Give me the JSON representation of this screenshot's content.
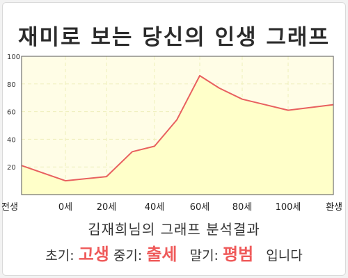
{
  "title": "재미로 보는 당신의 인생 그래프",
  "subtitle": "김재희님의 그래프 분석결과",
  "result": {
    "early_label": "초기:",
    "early_value": "고생",
    "mid_label": "중기:",
    "mid_value": "출세",
    "late_label": "말기:",
    "late_value": "평범",
    "suffix": "입니다"
  },
  "colors": {
    "line": "#e8605f",
    "fill": "#ffffc9",
    "plot_bg": "#fffde6",
    "grid": "#eeeebb",
    "highlight": "#ef5a5a"
  },
  "chart_data": {
    "type": "area",
    "x_tick_labels": [
      "전생",
      "0세",
      "20세",
      "40세",
      "60세",
      "80세",
      "100세",
      "환생"
    ],
    "y_ticks": [
      20,
      40,
      60,
      80,
      100
    ],
    "ylim": [
      0,
      100
    ],
    "grid": true,
    "points": [
      {
        "x": "전생",
        "y": 21
      },
      {
        "x": "0세",
        "y": 10
      },
      {
        "x": "20세",
        "y": 13
      },
      {
        "x": "30세",
        "y": 31
      },
      {
        "x": "40세",
        "y": 35
      },
      {
        "x": "50세",
        "y": 54
      },
      {
        "x": "60세",
        "y": 86
      },
      {
        "x": "70세",
        "y": 77
      },
      {
        "x": "80세",
        "y": 69
      },
      {
        "x": "100세",
        "y": 61
      },
      {
        "x": "환생",
        "y": 65
      }
    ]
  }
}
